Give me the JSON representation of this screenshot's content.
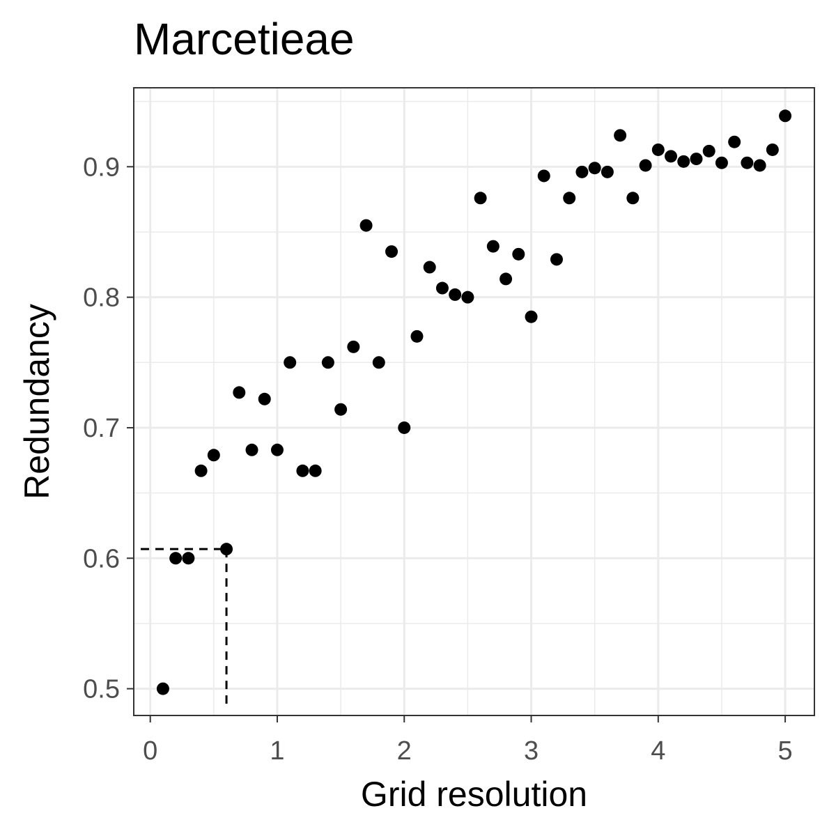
{
  "chart_data": {
    "type": "scatter",
    "title": "Marcetieae",
    "xlabel": "Grid resolution",
    "ylabel": "Redundancy",
    "xlim": [
      -0.13,
      5.23
    ],
    "ylim": [
      0.4795,
      0.9605
    ],
    "x_ticks": [
      0,
      1,
      2,
      3,
      4,
      5
    ],
    "x_tick_labels": [
      "0",
      "1",
      "2",
      "3",
      "4",
      "5"
    ],
    "y_ticks": [
      0.5,
      0.6,
      0.7,
      0.8,
      0.9
    ],
    "y_tick_labels": [
      "0.5",
      "0.6",
      "0.7",
      "0.8",
      "0.9"
    ],
    "grid": true,
    "point_color": "#000000",
    "x": [
      0.1,
      0.2,
      0.3,
      0.4,
      0.5,
      0.6,
      0.7,
      0.8,
      0.9,
      1.0,
      1.1,
      1.2,
      1.3,
      1.4,
      1.5,
      1.6,
      1.7,
      1.8,
      1.9,
      2.0,
      2.1,
      2.2,
      2.3,
      2.4,
      2.5,
      2.6,
      2.7,
      2.8,
      2.9,
      3.0,
      3.1,
      3.2,
      3.3,
      3.4,
      3.5,
      3.6,
      3.7,
      3.8,
      3.9,
      4.0,
      4.1,
      4.2,
      4.3,
      4.4,
      4.5,
      4.6,
      4.7,
      4.8,
      4.9,
      5.0
    ],
    "y": [
      0.5,
      0.6,
      0.6,
      0.667,
      0.679,
      0.607,
      0.727,
      0.683,
      0.722,
      0.683,
      0.75,
      0.667,
      0.667,
      0.75,
      0.714,
      0.762,
      0.855,
      0.75,
      0.835,
      0.7,
      0.77,
      0.823,
      0.807,
      0.802,
      0.8,
      0.876,
      0.839,
      0.814,
      0.833,
      0.785,
      0.893,
      0.829,
      0.876,
      0.896,
      0.899,
      0.896,
      0.924,
      0.876,
      0.901,
      0.913,
      0.908,
      0.904,
      0.906,
      0.912,
      0.903,
      0.919,
      0.903,
      0.901,
      0.913,
      0.939
    ],
    "reference_lines": {
      "x": 0.6,
      "y": 0.607,
      "style": "dashed"
    }
  }
}
